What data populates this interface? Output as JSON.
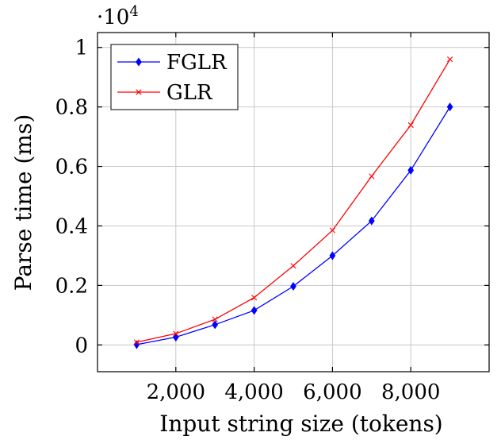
{
  "chart_data": {
    "type": "line",
    "title": "",
    "xlabel": "Input string size (tokens)",
    "ylabel": "Parse time (ms)",
    "y_scale_label": "·10",
    "y_scale_exponent": "4",
    "xlim": [
      0,
      10000
    ],
    "ylim": [
      -900,
      10500
    ],
    "x_ticks": [
      {
        "value": 2000,
        "label": "2,000"
      },
      {
        "value": 4000,
        "label": "4,000"
      },
      {
        "value": 6000,
        "label": "6,000"
      },
      {
        "value": 8000,
        "label": "8,000"
      }
    ],
    "y_ticks": [
      {
        "value": 0,
        "label": "0"
      },
      {
        "value": 2000,
        "label": "0.2"
      },
      {
        "value": 4000,
        "label": "0.4"
      },
      {
        "value": 6000,
        "label": "0.6"
      },
      {
        "value": 8000,
        "label": "0.8"
      },
      {
        "value": 10000,
        "label": "1"
      }
    ],
    "grid": true,
    "legend_position": "top-left",
    "x": [
      1000,
      2000,
      3000,
      4000,
      5000,
      6000,
      7000,
      8000,
      9000
    ],
    "series": [
      {
        "name": "FGLR",
        "color": "#0000ff",
        "marker": "diamond",
        "values": [
          10,
          260,
          680,
          1160,
          1970,
          3000,
          4170,
          5870,
          8000
        ]
      },
      {
        "name": "GLR",
        "color": "#ff0000",
        "marker": "x",
        "values": [
          90,
          380,
          860,
          1590,
          2660,
          3850,
          5670,
          7390,
          9600
        ]
      }
    ]
  }
}
